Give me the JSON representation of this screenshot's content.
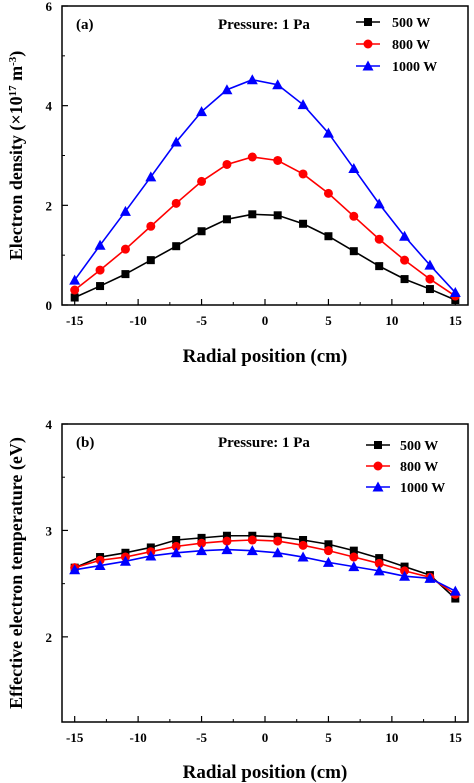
{
  "chart_data": [
    {
      "type": "line",
      "panel_label": "(a)",
      "annotation": "Pressure: 1 Pa",
      "xlabel": "Radial position (cm)",
      "ylabel_prefix": "Electron density (×10",
      "ylabel_exp1": "17",
      "ylabel_mid": " m",
      "ylabel_exp2": "-3",
      "ylabel_suffix": ")",
      "xlim": [
        -16,
        16
      ],
      "ylim": [
        0,
        6
      ],
      "xticks": [
        -15,
        -10,
        -5,
        0,
        5,
        10,
        15
      ],
      "yticks": [
        0,
        2,
        4,
        6
      ],
      "legend_position": "top-right",
      "x": [
        -15,
        -13,
        -11,
        -9,
        -7,
        -5,
        -3,
        -1,
        1,
        3,
        5,
        7,
        9,
        11,
        13,
        15
      ],
      "series": [
        {
          "name": "500 W",
          "color": "#000000",
          "marker": "square",
          "values": [
            0.15,
            0.38,
            0.62,
            0.9,
            1.18,
            1.48,
            1.72,
            1.82,
            1.8,
            1.63,
            1.38,
            1.08,
            0.78,
            0.52,
            0.32,
            0.1
          ]
        },
        {
          "name": "800 W",
          "color": "#ff0000",
          "marker": "circle",
          "values": [
            0.3,
            0.7,
            1.12,
            1.58,
            2.04,
            2.48,
            2.82,
            2.97,
            2.9,
            2.63,
            2.24,
            1.78,
            1.32,
            0.9,
            0.52,
            0.18
          ]
        },
        {
          "name": "1000 W",
          "color": "#0000ff",
          "marker": "triangle",
          "values": [
            0.5,
            1.2,
            1.88,
            2.57,
            3.27,
            3.88,
            4.32,
            4.52,
            4.42,
            4.02,
            3.45,
            2.74,
            2.03,
            1.38,
            0.8,
            0.25
          ]
        }
      ]
    },
    {
      "type": "line",
      "panel_label": "(b)",
      "annotation": "Pressure: 1 Pa",
      "xlabel": "Radial position (cm)",
      "ylabel": "Effective electron temperature (eV)",
      "xlim": [
        -16,
        16
      ],
      "ylim": [
        1.2,
        4
      ],
      "xticks": [
        -15,
        -10,
        -5,
        0,
        5,
        10,
        15
      ],
      "yticks": [
        2,
        3,
        4
      ],
      "legend_position": "top-right",
      "x": [
        -15,
        -13,
        -11,
        -9,
        -7,
        -5,
        -3,
        -1,
        1,
        3,
        5,
        7,
        9,
        11,
        13,
        15
      ],
      "series": [
        {
          "name": "500 W",
          "color": "#000000",
          "marker": "square",
          "values": [
            2.65,
            2.75,
            2.79,
            2.84,
            2.91,
            2.93,
            2.95,
            2.95,
            2.94,
            2.91,
            2.87,
            2.81,
            2.74,
            2.66,
            2.58,
            2.36
          ]
        },
        {
          "name": "800 W",
          "color": "#ff0000",
          "marker": "circle",
          "values": [
            2.65,
            2.72,
            2.75,
            2.8,
            2.85,
            2.88,
            2.9,
            2.91,
            2.9,
            2.86,
            2.81,
            2.75,
            2.69,
            2.62,
            2.56,
            2.4
          ]
        },
        {
          "name": "1000 W",
          "color": "#0000ff",
          "marker": "triangle",
          "values": [
            2.63,
            2.67,
            2.71,
            2.76,
            2.79,
            2.81,
            2.82,
            2.81,
            2.79,
            2.75,
            2.7,
            2.66,
            2.62,
            2.57,
            2.55,
            2.43
          ]
        }
      ]
    }
  ]
}
